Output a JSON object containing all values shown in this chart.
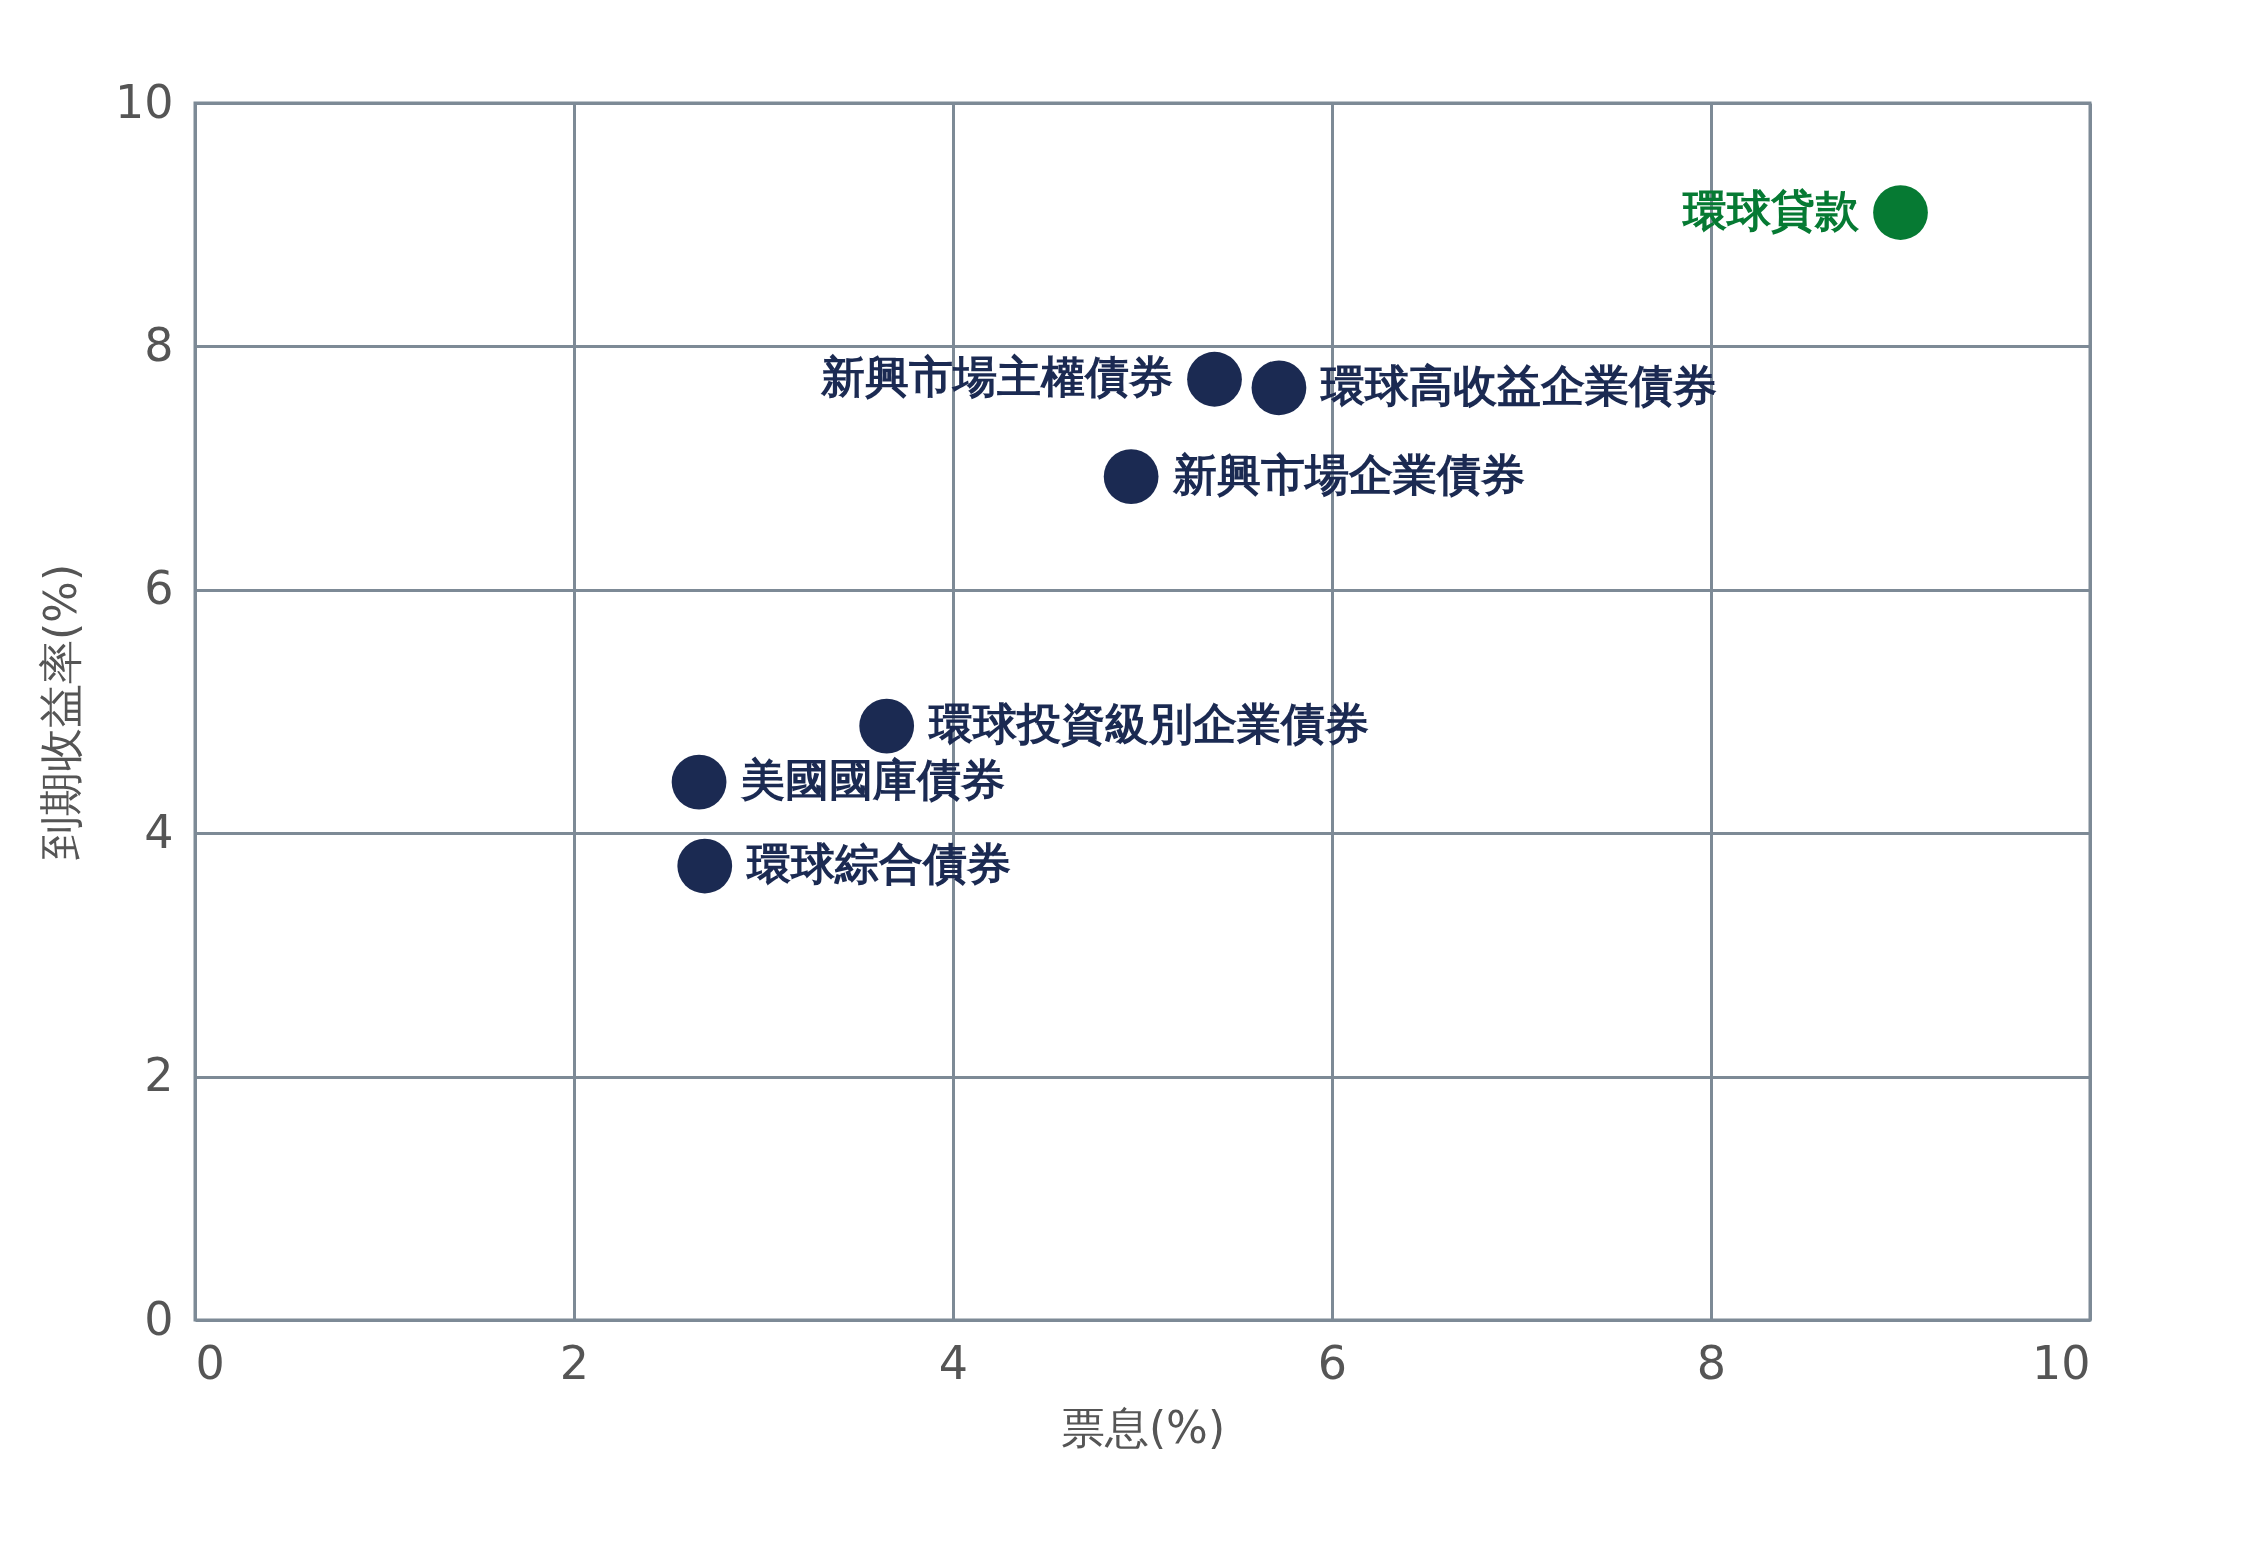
{
  "chart_data": {
    "type": "scatter",
    "xlabel": "票息(%)",
    "ylabel": "到期收益率(%)",
    "xlim": [
      0,
      10
    ],
    "ylim": [
      0,
      10
    ],
    "xticks": [
      0,
      2,
      4,
      6,
      8,
      10
    ],
    "yticks": [
      0,
      2,
      4,
      6,
      8,
      10
    ],
    "grid": true,
    "legend": false,
    "marker": "circle",
    "series": [
      {
        "name": "環球貸款",
        "color": "#067a33",
        "x": [
          9.0
        ],
        "values": [
          9.1
        ]
      },
      {
        "name": "新興市場主權債券",
        "color": "#1b2a52",
        "x": [
          5.38
        ],
        "values": [
          7.73
        ]
      },
      {
        "name": "環球高收益企業債券",
        "color": "#1b2a52",
        "x": [
          5.72
        ],
        "values": [
          7.66
        ]
      },
      {
        "name": "新興市場企業債券",
        "color": "#1b2a52",
        "x": [
          4.94
        ],
        "values": [
          6.93
        ]
      },
      {
        "name": "環球投資級別企業債券",
        "color": "#1b2a52",
        "x": [
          3.65
        ],
        "values": [
          4.88
        ]
      },
      {
        "name": "美國國庫債券",
        "color": "#1b2a52",
        "x": [
          2.66
        ],
        "values": [
          4.42
        ]
      },
      {
        "name": "環球綜合債券",
        "color": "#1b2a52",
        "x": [
          2.69
        ],
        "values": [
          3.73
        ]
      }
    ]
  }
}
